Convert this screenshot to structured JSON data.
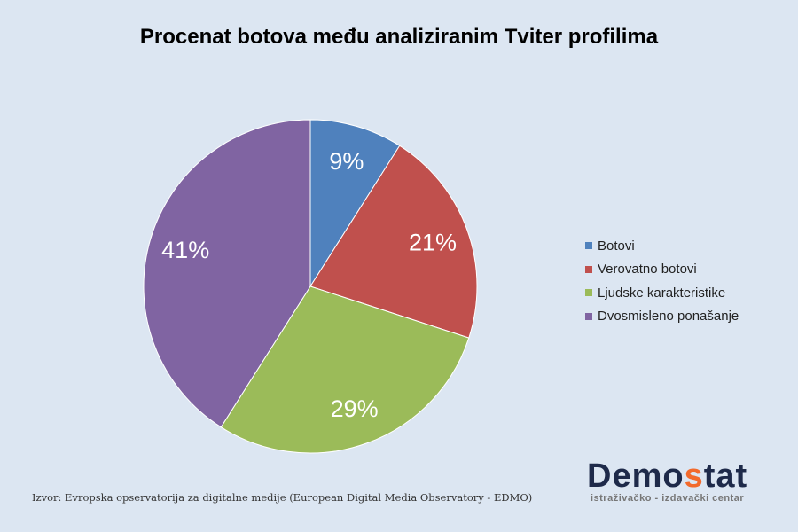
{
  "chart_data": {
    "type": "pie",
    "title": "Procenat botova među analiziranim Tviter profilima",
    "categories": [
      "Botovi",
      "Verovatno botovi",
      "Ljudske karakteristike",
      "Dvosmisleno ponašanje"
    ],
    "values": [
      9,
      21,
      29,
      41
    ],
    "data_labels": [
      "9%",
      "21%",
      "29%",
      "41%"
    ],
    "colors": [
      "#4f81bd",
      "#c0504d",
      "#9bbb59",
      "#8064a2"
    ],
    "legend_position": "right"
  },
  "source": "Izvor: Evropska opservatorija za digitalne medije (European Digital Media Observatory - EDMO)",
  "logo": {
    "name_a": "Demo",
    "name_b": "s",
    "name_c": "tat",
    "tagline": "istraživačko - izdavački  centar"
  }
}
